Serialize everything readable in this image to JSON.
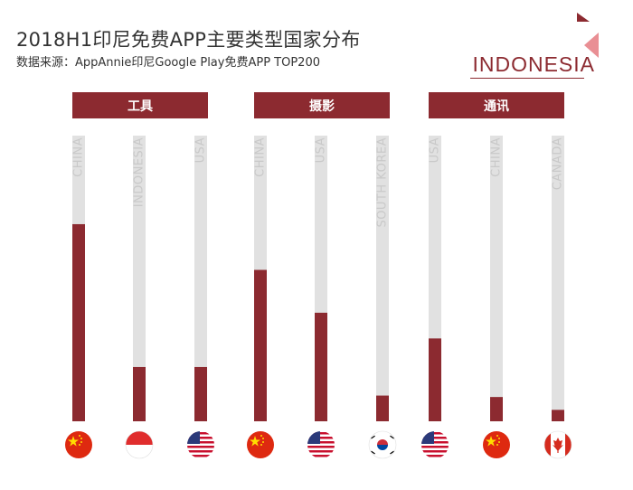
{
  "header": {
    "title": "2018H1印尼免费APP主要类型国家分布",
    "subtitle": "数据来源：AppAnnie印尼Google Play免费APP TOP200",
    "brand": "INDONESIA"
  },
  "colors": {
    "accent": "#8c2a30",
    "track": "#e1e1e1",
    "axis_text": "#c9c9c9"
  },
  "chart_data": {
    "type": "bar",
    "groups": [
      {
        "name": "工具",
        "categories": [
          "CHINA",
          "INDONESIA",
          "USA"
        ],
        "values": [
          0.69,
          0.19,
          0.19
        ],
        "flags": [
          "china-flag-icon",
          "indonesia-flag-icon",
          "usa-flag-icon"
        ]
      },
      {
        "name": "摄影",
        "categories": [
          "CHINA",
          "USA",
          "SOUTH KOREA"
        ],
        "values": [
          0.53,
          0.38,
          0.09
        ],
        "flags": [
          "china-flag-icon",
          "usa-flag-icon",
          "south-korea-flag-icon"
        ]
      },
      {
        "name": "通讯",
        "categories": [
          "USA",
          "CHINA",
          "CANADA"
        ],
        "values": [
          0.29,
          0.085,
          0.04
        ],
        "flags": [
          "usa-flag-icon",
          "china-flag-icon",
          "canada-flag-icon"
        ]
      }
    ],
    "ylim": [
      0,
      1
    ],
    "grid": false
  }
}
